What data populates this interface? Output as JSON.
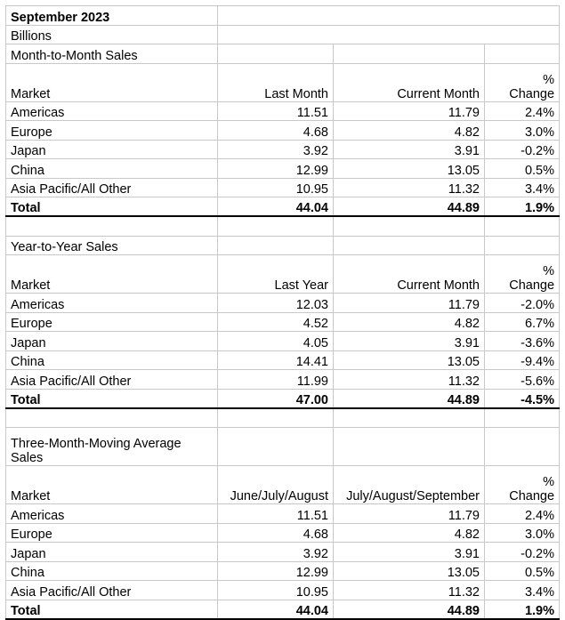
{
  "title": "September 2023",
  "units": "Billions",
  "sections": [
    {
      "name": "Month-to-Month Sales",
      "headers": [
        "Market",
        "Last Month",
        "Current Month",
        "%\nChange"
      ],
      "rows": [
        [
          "Americas",
          "11.51",
          "11.79",
          "2.4%"
        ],
        [
          "Europe",
          "4.68",
          "4.82",
          "3.0%"
        ],
        [
          "Japan",
          "3.92",
          "3.91",
          "-0.2%"
        ],
        [
          "China",
          "12.99",
          "13.05",
          "0.5%"
        ],
        [
          "Asia Pacific/All Other",
          "10.95",
          "11.32",
          "3.4%"
        ]
      ],
      "total": [
        "Total",
        "44.04",
        "44.89",
        "1.9%"
      ]
    },
    {
      "name": "Year-to-Year Sales",
      "headers": [
        "Market",
        "Last Year",
        "Current Month",
        "%\nChange"
      ],
      "rows": [
        [
          "Americas",
          "12.03",
          "11.79",
          "-2.0%"
        ],
        [
          "Europe",
          "4.52",
          "4.82",
          "6.7%"
        ],
        [
          "Japan",
          "4.05",
          "3.91",
          "-3.6%"
        ],
        [
          "China",
          "14.41",
          "13.05",
          "-9.4%"
        ],
        [
          "Asia Pacific/All Other",
          "11.99",
          "11.32",
          "-5.6%"
        ]
      ],
      "total": [
        "Total",
        "47.00",
        "44.89",
        "-4.5%"
      ]
    },
    {
      "name": "Three-Month-Moving Average Sales",
      "headers": [
        "Market",
        "June/July/August",
        "July/August/September",
        "%\nChange"
      ],
      "rows": [
        [
          "Americas",
          "11.51",
          "11.79",
          "2.4%"
        ],
        [
          "Europe",
          "4.68",
          "4.82",
          "3.0%"
        ],
        [
          "Japan",
          "3.92",
          "3.91",
          "-0.2%"
        ],
        [
          "China",
          "12.99",
          "13.05",
          "0.5%"
        ],
        [
          "Asia Pacific/All Other",
          "10.95",
          "11.32",
          "3.4%"
        ]
      ],
      "total": [
        "Total",
        "44.04",
        "44.89",
        "1.9%"
      ]
    }
  ]
}
